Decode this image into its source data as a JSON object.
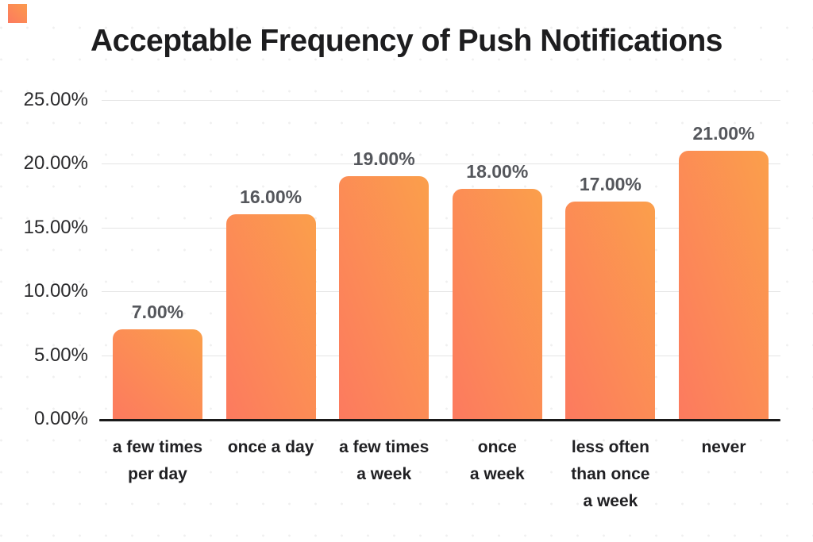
{
  "brand_mark": {
    "color_start": "#fc7a5f",
    "color_end": "#fb9a4d"
  },
  "chart_data": {
    "type": "bar",
    "title": "Acceptable Frequency of Push Notifications",
    "categories": [
      "a few times\nper day",
      "once a day",
      "a few times\na week",
      "once\na week",
      "less often\nthan once\na week",
      "never"
    ],
    "values": [
      7,
      16,
      19,
      18,
      17,
      21
    ],
    "value_labels": [
      "7.00%",
      "16.00%",
      "19.00%",
      "18.00%",
      "17.00%",
      "21.00%"
    ],
    "y_ticks": [
      {
        "label": "25.00%",
        "value": 25
      },
      {
        "label": "20.00%",
        "value": 20
      },
      {
        "label": "15.00%",
        "value": 15
      },
      {
        "label": "10.00%",
        "value": 10
      },
      {
        "label": "5.00%",
        "value": 5
      },
      {
        "label": "0.00%",
        "value": 0
      }
    ],
    "ylim": [
      0,
      25
    ],
    "xlabel": "",
    "ylabel": "",
    "legend": "none",
    "grid": "horizontal",
    "colors": {
      "bar_gradient_start": "#fc7a5f",
      "bar_gradient_end": "#fb9f4b",
      "gridline": "#e4e4e4",
      "axis": "#1a1a1a",
      "title": "#1d1d1f",
      "y_tick": "#2a2a2c",
      "value_label": "#55575c",
      "category_label": "#202023"
    }
  }
}
